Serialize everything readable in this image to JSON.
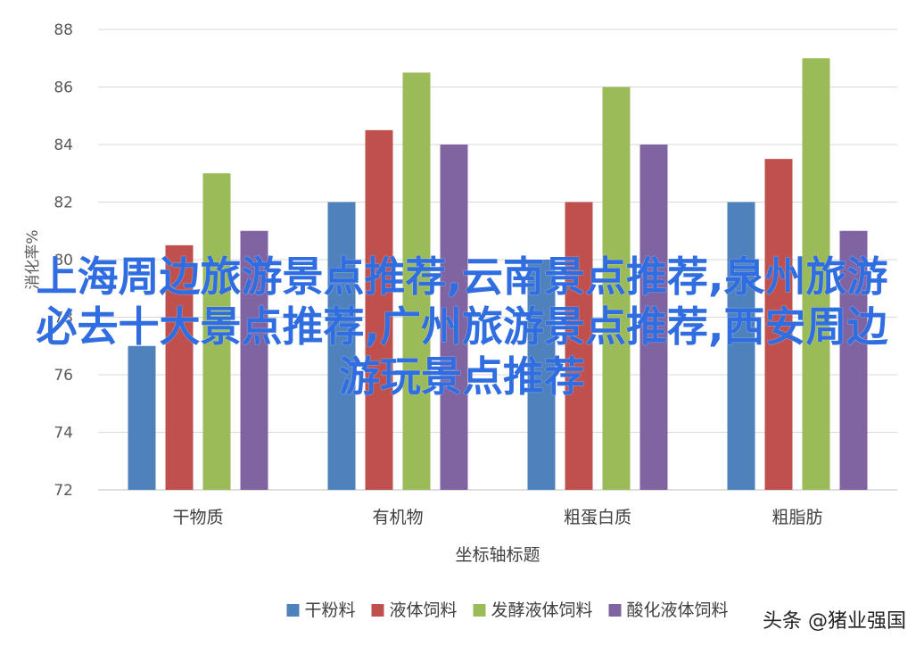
{
  "chart_data": {
    "type": "bar",
    "categories": [
      "干物质",
      "有机物",
      "粗蛋白质",
      "粗脂肪"
    ],
    "series": [
      {
        "name": "干粉料",
        "color": "#4f81bd",
        "values": [
          77,
          82,
          80,
          82
        ]
      },
      {
        "name": "液体饲料",
        "color": "#c0504d",
        "values": [
          80.5,
          84.5,
          82,
          83.5
        ]
      },
      {
        "name": "发酵液体饲料",
        "color": "#9bbb59",
        "values": [
          83,
          86.5,
          86,
          87
        ]
      },
      {
        "name": "酸化液体饲料",
        "color": "#8064a2",
        "values": [
          81,
          84,
          84,
          81
        ]
      }
    ],
    "ylabel": "消化率%",
    "xlabel": "坐标轴标题",
    "ylim": [
      72,
      88
    ],
    "yticks": [
      "72",
      "74",
      "76",
      "78",
      "80",
      "82",
      "84",
      "86",
      "88"
    ],
    "grid": true,
    "legend_position": "bottom"
  },
  "overlay_text": "上海周边旅游景点推荐,云南景点推荐,泉州旅游必去十大景点推荐,广州旅游景点推荐,西安周边游玩景点推荐",
  "watermark": "头条 @猪业强国"
}
